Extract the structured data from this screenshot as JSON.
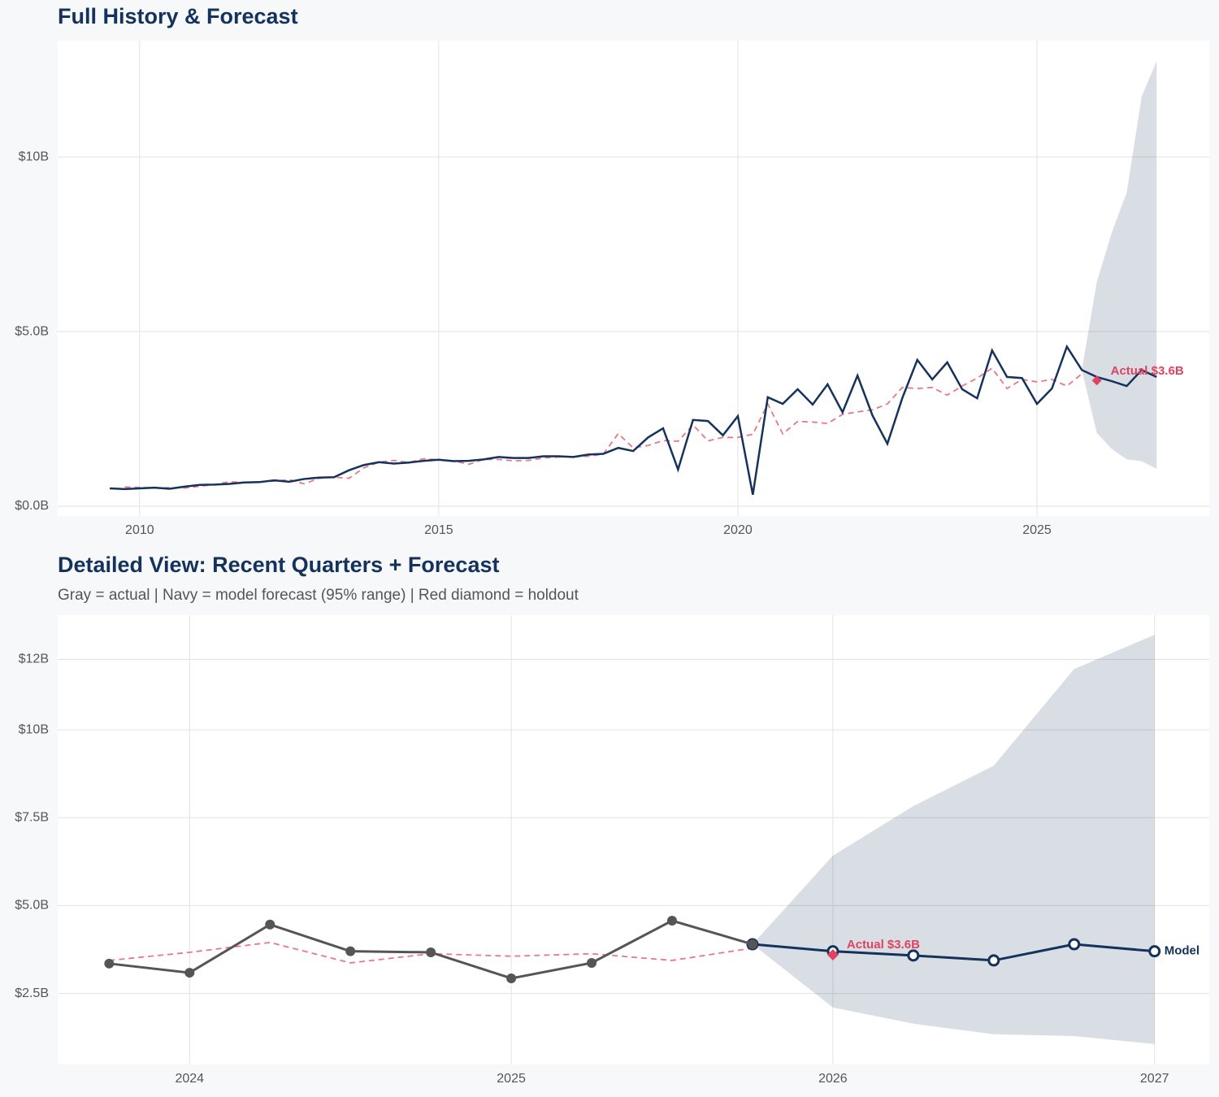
{
  "chart_data": [
    {
      "type": "line",
      "title": "Full History & Forecast",
      "xlim": [
        2008.63,
        2027.88
      ],
      "xticks": [
        2010,
        2015,
        2020,
        2025
      ],
      "ylim": [
        -0.28,
        13.33
      ],
      "yticks": [
        {
          "value": 0,
          "label": "$0.0B"
        },
        {
          "value": 5,
          "label": "$5.0B"
        },
        {
          "value": 10,
          "label": "$10B"
        }
      ],
      "grid": true,
      "band": {
        "color": "#14325c",
        "x": [
          2025.75,
          2026.0,
          2026.25,
          2026.5,
          2026.75,
          2027.0
        ],
        "upper": [
          3.9,
          6.42,
          7.83,
          8.98,
          11.73,
          12.74
        ],
        "lower": [
          3.9,
          2.1,
          1.64,
          1.34,
          1.29,
          1.07
        ]
      },
      "series": [
        {
          "color": "#e8778a",
          "dashed": true,
          "markers": "none",
          "x": [
            2009.75,
            2010.0,
            2010.25,
            2010.5,
            2010.75,
            2011.0,
            2011.25,
            2011.5,
            2011.75,
            2012.0,
            2012.25,
            2012.5,
            2012.75,
            2013.0,
            2013.25,
            2013.5,
            2013.75,
            2014.0,
            2014.25,
            2014.5,
            2014.75,
            2015.0,
            2015.25,
            2015.5,
            2015.75,
            2016.0,
            2016.25,
            2016.5,
            2016.75,
            2017.0,
            2017.25,
            2017.5,
            2017.75,
            2018.0,
            2018.25,
            2018.5,
            2018.75,
            2019.0,
            2019.25,
            2019.5,
            2019.75,
            2020.0,
            2020.25,
            2020.5,
            2020.75,
            2021.0,
            2021.25,
            2021.5,
            2021.75,
            2022.0,
            2022.25,
            2022.5,
            2022.75,
            2023.0,
            2023.25,
            2023.5,
            2023.75,
            2024.0,
            2024.25,
            2024.5,
            2024.75,
            2025.0,
            2025.25,
            2025.5,
            2025.75
          ],
          "values": [
            0.55,
            0.54,
            0.52,
            0.53,
            0.52,
            0.57,
            0.62,
            0.7,
            0.68,
            0.7,
            0.72,
            0.76,
            0.64,
            0.8,
            0.83,
            0.8,
            1.1,
            1.26,
            1.31,
            1.25,
            1.36,
            1.33,
            1.3,
            1.2,
            1.34,
            1.34,
            1.3,
            1.31,
            1.38,
            1.41,
            1.42,
            1.43,
            1.49,
            2.08,
            1.67,
            1.74,
            1.88,
            1.86,
            2.33,
            1.87,
            1.97,
            1.97,
            2.06,
            2.93,
            2.07,
            2.43,
            2.41,
            2.37,
            2.63,
            2.7,
            2.76,
            2.93,
            3.4,
            3.37,
            3.4,
            3.18,
            3.44,
            3.67,
            3.95,
            3.37,
            3.63,
            3.56,
            3.63,
            3.44,
            3.79
          ]
        },
        {
          "color": "#14325c",
          "dashed": false,
          "markers": "none",
          "x": [
            2009.5,
            2009.75,
            2010.0,
            2010.25,
            2010.5,
            2010.75,
            2011.0,
            2011.25,
            2011.5,
            2011.75,
            2012.0,
            2012.25,
            2012.5,
            2012.75,
            2013.0,
            2013.25,
            2013.5,
            2013.75,
            2014.0,
            2014.25,
            2014.5,
            2014.75,
            2015.0,
            2015.25,
            2015.5,
            2015.75,
            2016.0,
            2016.25,
            2016.5,
            2016.75,
            2017.0,
            2017.25,
            2017.5,
            2017.75,
            2018.0,
            2018.25,
            2018.5,
            2018.75,
            2019.0,
            2019.25,
            2019.5,
            2019.75,
            2020.0,
            2020.25,
            2020.5,
            2020.75,
            2021.0,
            2021.25,
            2021.5,
            2021.75,
            2022.0,
            2022.25,
            2022.5,
            2022.75,
            2023.0,
            2023.25,
            2023.5,
            2023.75,
            2024.0,
            2024.25,
            2024.5,
            2024.75,
            2025.0,
            2025.25,
            2025.5,
            2025.75,
            2026.0,
            2026.25,
            2026.5,
            2026.75,
            2027.0
          ],
          "values": [
            0.51,
            0.49,
            0.51,
            0.53,
            0.5,
            0.56,
            0.61,
            0.62,
            0.64,
            0.68,
            0.69,
            0.74,
            0.7,
            0.78,
            0.82,
            0.83,
            1.03,
            1.18,
            1.26,
            1.22,
            1.25,
            1.3,
            1.33,
            1.29,
            1.3,
            1.34,
            1.41,
            1.38,
            1.38,
            1.43,
            1.43,
            1.41,
            1.48,
            1.5,
            1.67,
            1.58,
            1.97,
            2.23,
            1.05,
            2.47,
            2.44,
            2.03,
            2.58,
            0.33,
            3.12,
            2.93,
            3.35,
            2.91,
            3.49,
            2.69,
            3.74,
            2.6,
            1.79,
            3.1,
            4.19,
            3.63,
            4.12,
            3.35,
            3.09,
            4.46,
            3.7,
            3.67,
            2.93,
            3.37,
            4.57,
            3.9,
            3.7,
            3.58,
            3.44,
            3.9,
            3.7
          ]
        }
      ],
      "holdout": {
        "x": 2026.0,
        "value": 3.6,
        "label": "Actual $3.6B",
        "color": "#e0435f"
      }
    },
    {
      "type": "line",
      "title": "Detailed View: Recent Quarters + Forecast",
      "subtitle": "Gray = actual  |  Navy = model forecast (95% range)  |  Red diamond = holdout",
      "xlim": [
        2023.59,
        2027.17
      ],
      "xticks": [
        2024,
        2025,
        2026,
        2027
      ],
      "ylim": [
        0.48,
        13.26
      ],
      "yticks": [
        {
          "value": 2.5,
          "label": "$2.5B"
        },
        {
          "value": 5,
          "label": "$5.0B"
        },
        {
          "value": 7.5,
          "label": "$7.5B"
        },
        {
          "value": 10,
          "label": "$10B"
        },
        {
          "value": 12,
          "label": "$12B"
        }
      ],
      "grid": true,
      "band": {
        "color": "#14325c",
        "x": [
          2025.75,
          2026.0,
          2026.25,
          2026.5,
          2026.75,
          2027.0
        ],
        "upper": [
          3.9,
          6.42,
          7.83,
          8.98,
          11.73,
          12.7
        ],
        "lower": [
          3.9,
          2.1,
          1.64,
          1.34,
          1.29,
          1.06
        ]
      },
      "series": [
        {
          "color": "#e8778a",
          "dashed": true,
          "markers": "none",
          "x": [
            2023.75,
            2024.0,
            2024.25,
            2024.5,
            2024.75,
            2025.0,
            2025.25,
            2025.5,
            2025.75
          ],
          "values": [
            3.44,
            3.67,
            3.95,
            3.37,
            3.63,
            3.56,
            3.63,
            3.44,
            3.79
          ]
        },
        {
          "name": "Model",
          "color": "#14325c",
          "dashed": false,
          "markers": "open",
          "x": [
            2025.75,
            2026.0,
            2026.25,
            2026.5,
            2026.75,
            2027.0
          ],
          "values": [
            3.9,
            3.7,
            3.58,
            3.44,
            3.9,
            3.7
          ]
        },
        {
          "color": "#555555",
          "dashed": false,
          "markers": "filled",
          "x": [
            2023.75,
            2024.0,
            2024.25,
            2024.5,
            2024.75,
            2025.0,
            2025.25,
            2025.5,
            2025.75
          ],
          "values": [
            3.35,
            3.09,
            4.46,
            3.7,
            3.67,
            2.93,
            3.37,
            4.57,
            3.9
          ]
        }
      ],
      "holdout": {
        "x": 2026.0,
        "value": 3.6,
        "label": "Actual $3.6B",
        "color": "#e0435f"
      }
    }
  ]
}
